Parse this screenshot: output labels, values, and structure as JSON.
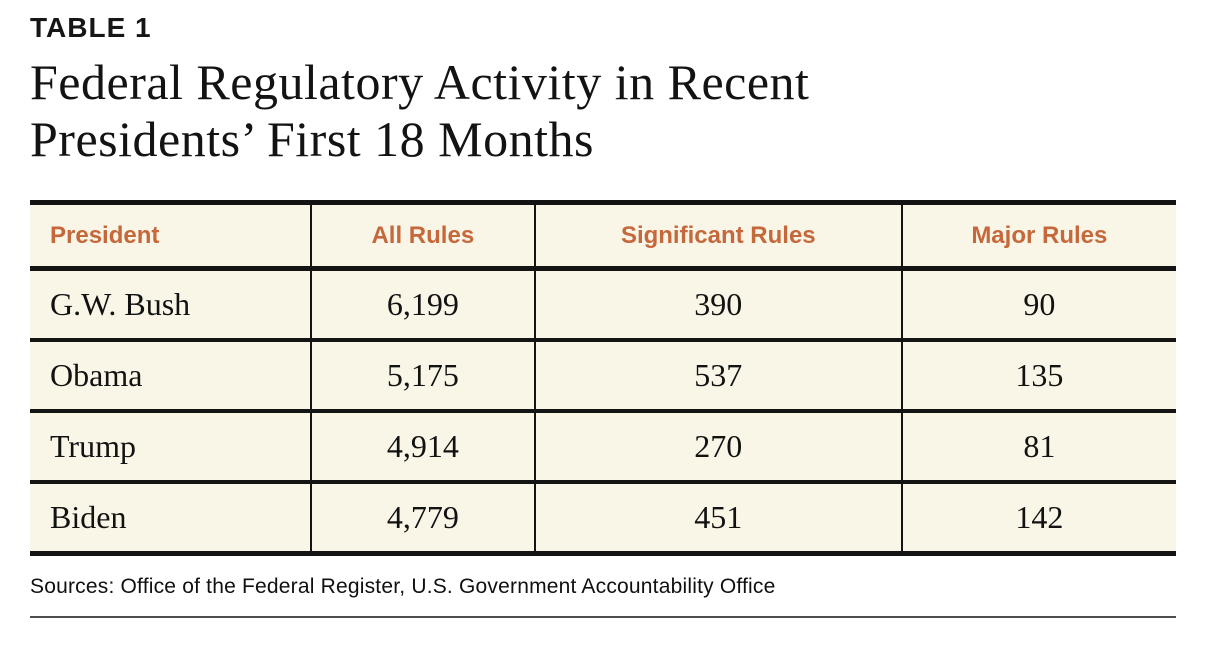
{
  "colors": {
    "accent_orange": "#c5683b",
    "cell_cream": "#faf6e7",
    "border_black": "#141414",
    "footer_rule_gray": "#4d4d4d",
    "text_black": "#161616"
  },
  "header": {
    "kicker": "TABLE 1",
    "title_line1": "Federal Regulatory Activity in Recent",
    "title_line2": "Presidents’ First 18 Months"
  },
  "chart_data": {
    "type": "table",
    "title": "Federal Regulatory Activity in Recent Presidents’ First 18 Months",
    "columns": [
      "President",
      "All Rules",
      "Significant Rules",
      "Major Rules"
    ],
    "rows": [
      [
        "G.W. Bush",
        "6,199",
        "390",
        "90"
      ],
      [
        "Obama",
        "5,175",
        "537",
        "135"
      ],
      [
        "Trump",
        "4,914",
        "270",
        "81"
      ],
      [
        "Biden",
        "4,779",
        "451",
        "142"
      ]
    ],
    "numeric_rows": [
      {
        "president": "G.W. Bush",
        "all_rules": 6199,
        "significant_rules": 390,
        "major_rules": 90
      },
      {
        "president": "Obama",
        "all_rules": 5175,
        "significant_rules": 537,
        "major_rules": 135
      },
      {
        "president": "Trump",
        "all_rules": 4914,
        "significant_rules": 270,
        "major_rules": 81
      },
      {
        "president": "Biden",
        "all_rules": 4779,
        "significant_rules": 451,
        "major_rules": 142
      }
    ]
  },
  "footer": {
    "sources": "Sources: Office of the Federal Register, U.S. Government Accountability Office"
  }
}
